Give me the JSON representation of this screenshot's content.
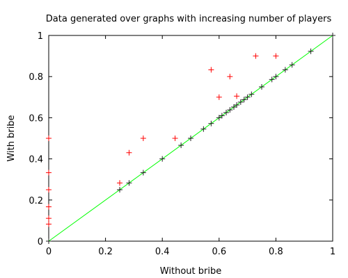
{
  "chart_data": {
    "type": "scatter",
    "title": "Data generated over graphs with increasing number of players",
    "xlabel": "Without bribe",
    "ylabel": "With bribe",
    "xlim": [
      0,
      1
    ],
    "ylim": [
      0,
      1
    ],
    "xticks": [
      "0",
      "0.2",
      "0.4",
      "0.6",
      "0.8",
      "1"
    ],
    "xtick_values": [
      0,
      0.2,
      0.4,
      0.6,
      0.8,
      1
    ],
    "yticks": [
      "0",
      "0.2",
      "0.4",
      "0.6",
      "0.8",
      "1"
    ],
    "ytick_values": [
      0,
      0.2,
      0.4,
      0.6,
      0.8,
      1
    ],
    "grid": false,
    "legend": "none",
    "reference_line": {
      "from": [
        0,
        0
      ],
      "to": [
        1,
        1
      ],
      "color": "#00ff00"
    },
    "marker": "plus",
    "colors": {
      "red": "#ff0000",
      "dark": "#222222"
    },
    "series": [
      {
        "color_key": "red",
        "points": [
          [
            0.0,
            0.5
          ],
          [
            0.0,
            0.333
          ],
          [
            0.0,
            0.25
          ],
          [
            0.0,
            0.167
          ],
          [
            0.0,
            0.111
          ],
          [
            0.0,
            0.083
          ],
          [
            0.25,
            0.283
          ],
          [
            0.283,
            0.43
          ],
          [
            0.333,
            0.5
          ],
          [
            0.445,
            0.5
          ],
          [
            0.572,
            0.833
          ],
          [
            0.6,
            0.7
          ],
          [
            0.638,
            0.8
          ],
          [
            0.662,
            0.705
          ],
          [
            0.729,
            0.9
          ],
          [
            0.8,
            0.9
          ],
          [
            1.0,
            1.0
          ]
        ]
      },
      {
        "color_key": "dark",
        "points": [
          [
            0.0,
            0.0
          ],
          [
            0.25,
            0.25
          ],
          [
            0.283,
            0.283
          ],
          [
            0.333,
            0.333
          ],
          [
            0.4,
            0.4
          ],
          [
            0.466,
            0.466
          ],
          [
            0.5,
            0.5
          ],
          [
            0.545,
            0.545
          ],
          [
            0.572,
            0.572
          ],
          [
            0.6,
            0.6
          ],
          [
            0.61,
            0.61
          ],
          [
            0.625,
            0.625
          ],
          [
            0.638,
            0.638
          ],
          [
            0.652,
            0.652
          ],
          [
            0.662,
            0.662
          ],
          [
            0.676,
            0.676
          ],
          [
            0.688,
            0.688
          ],
          [
            0.7,
            0.7
          ],
          [
            0.714,
            0.714
          ],
          [
            0.75,
            0.75
          ],
          [
            0.786,
            0.786
          ],
          [
            0.8,
            0.8
          ],
          [
            0.833,
            0.833
          ],
          [
            0.857,
            0.857
          ],
          [
            0.923,
            0.923
          ],
          [
            1.0,
            1.0
          ]
        ]
      }
    ]
  }
}
